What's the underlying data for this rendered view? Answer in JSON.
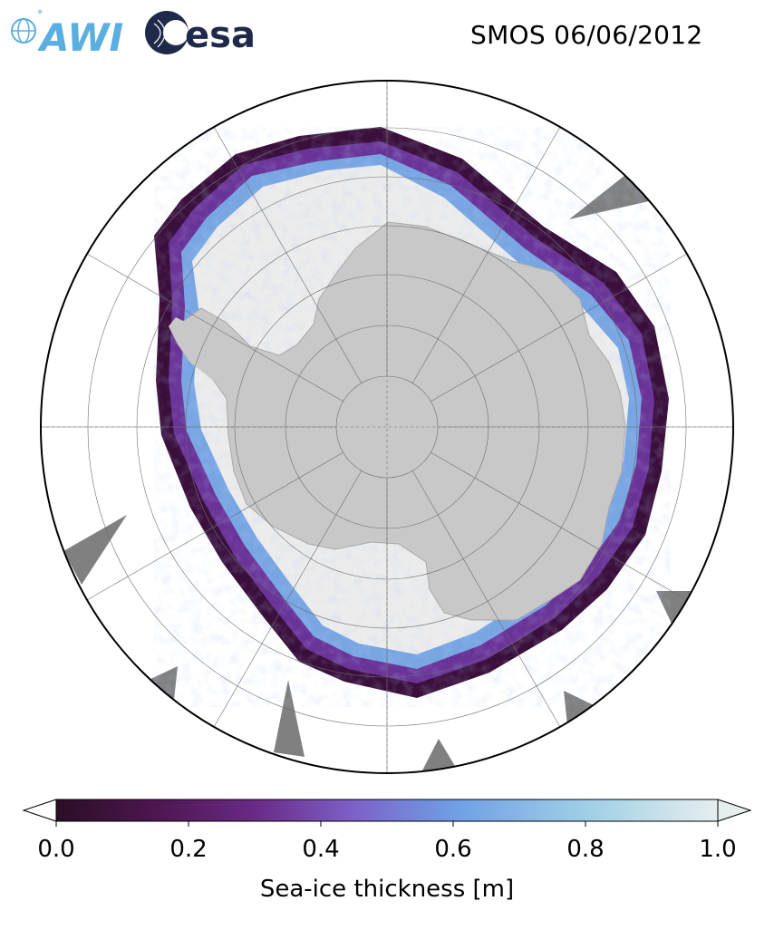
{
  "title": "SMOS 06/06/2012",
  "logos": {
    "awi": {
      "text": "AWI",
      "icon": "awi-logo-icon",
      "color": "#5aaee0"
    },
    "esa": {
      "text": "esa",
      "icon": "esa-logo-icon",
      "color": "#1f2a4a"
    }
  },
  "map": {
    "projection": "south-polar-stereographic",
    "colors": {
      "ocean": "#ffffff",
      "land": "#c8c8c8",
      "thick_ice": "#ececec",
      "missing_data": "#808080",
      "graticule": "#6e6e6e",
      "boundary": "#000000"
    },
    "graticule": {
      "latitude_circles": 7,
      "meridian_step_deg": 30
    }
  },
  "colorbar": {
    "label": "Sea-ice thickness [m]",
    "ticks": [
      "0.0",
      "0.2",
      "0.4",
      "0.6",
      "0.8",
      "1.0"
    ],
    "range": [
      0.0,
      1.0
    ],
    "extend": "both",
    "colormap_stops": [
      "#2a0e25",
      "#4d1650",
      "#6a2a86",
      "#7d61c8",
      "#6f9ee5",
      "#9ecfe6",
      "#e5eeee"
    ]
  }
}
